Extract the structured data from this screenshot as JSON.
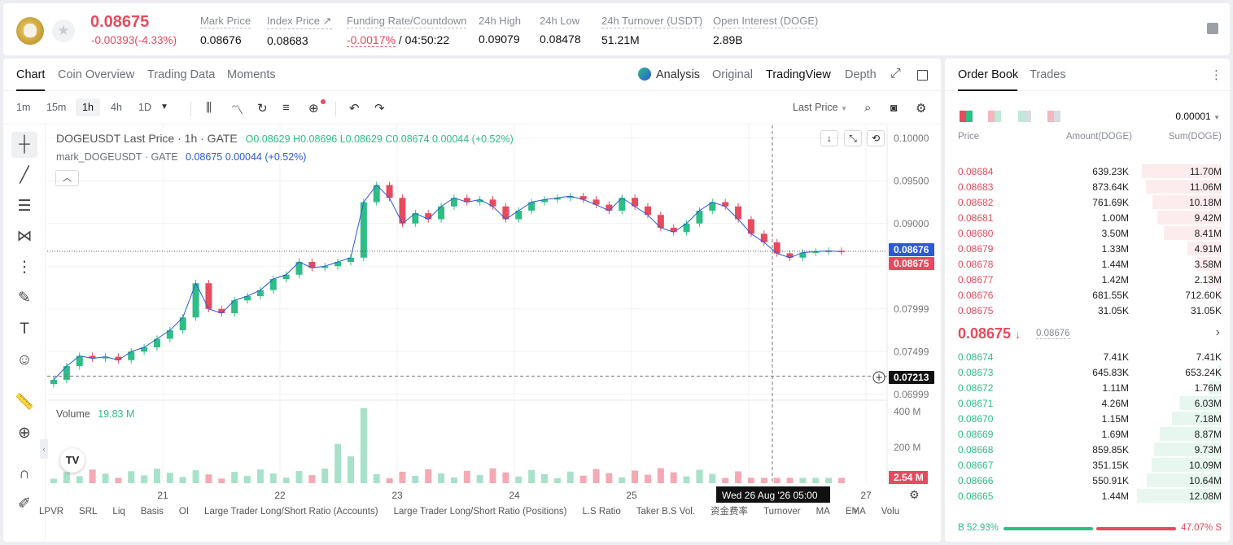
{
  "header": {
    "last_price": "0.08675",
    "change": "-0.00393(-4.33%)",
    "stats": [
      {
        "label": "Mark Price",
        "value": "0.08676"
      },
      {
        "label": "Index Price ↗",
        "value": "0.08683"
      },
      {
        "label": "Funding Rate/Countdown",
        "value": "-0.0017%",
        "value2": " / 04:50:22"
      },
      {
        "label": "24h High",
        "value": "0.09079"
      },
      {
        "label": "24h Low",
        "value": "0.08478"
      },
      {
        "label": "24h Turnover (USDT)",
        "value": "51.21M"
      },
      {
        "label": "Open Interest (DOGE)",
        "value": "2.89B"
      }
    ]
  },
  "chart_tabs": {
    "left": [
      "Chart",
      "Coin Overview",
      "Trading Data",
      "Moments"
    ],
    "right": [
      "Analysis",
      "Original",
      "TradingView",
      "Depth"
    ]
  },
  "toolbar": {
    "timeframes": [
      "1m",
      "15m",
      "1h",
      "4h",
      "1D"
    ],
    "selected": "1h",
    "price_type": "Last Price"
  },
  "legend": {
    "symbol": "DOGEUSDT Last Price · 1h · GATE",
    "ohlc": "O0.08629  H0.08696  L0.08629  C0.08674  0.00044 (+0.52%)",
    "mark_label": "mark_DOGEUSDT · GATE",
    "mark_values": "0.08675  0.00044  (+0.52%)",
    "volume_label": "Volume",
    "volume_value": "19.83 M"
  },
  "price_axis": {
    "ticks": [
      "0.10000",
      "0.09500",
      "0.09000",
      "0.08499",
      "0.07999",
      "0.07499",
      "0.06999"
    ],
    "mark_tag": "0.08676",
    "last_tag": "0.08675",
    "cross_tag": "0.07213"
  },
  "volume_axis": {
    "ticks": [
      "400 M",
      "200 M"
    ],
    "current_tag": "2.54 M"
  },
  "time_axis": {
    "ticks": [
      "21",
      "22",
      "23",
      "24",
      "25",
      "27"
    ],
    "crosshair": "Wed 26 Aug '26   05:00"
  },
  "bottom_nav": [
    "LPVR",
    "SRL",
    "Liq",
    "Basis",
    "OI",
    "Large Trader Long/Short Ratio (Accounts)",
    "Large Trader Long/Short Ratio (Positions)",
    "L.S Ratio",
    "Taker B.S Vol.",
    "资金费率",
    "Turnover",
    "MA",
    "EMA",
    "Volu"
  ],
  "chart_data": {
    "type": "candlestick",
    "ylim": [
      0.0695,
      0.1015
    ],
    "close_approx_by_hour": [
      0.0717,
      0.0733,
      0.0745,
      0.0742,
      0.0744,
      0.074,
      0.075,
      0.0755,
      0.0765,
      0.0775,
      0.079,
      0.083,
      0.08,
      0.0795,
      0.081,
      0.0815,
      0.0822,
      0.0835,
      0.084,
      0.0855,
      0.0848,
      0.085,
      0.0855,
      0.086,
      0.0925,
      0.0945,
      0.093,
      0.09,
      0.0912,
      0.0905,
      0.092,
      0.093,
      0.0925,
      0.0928,
      0.092,
      0.0905,
      0.0915,
      0.0925,
      0.0928,
      0.093,
      0.0932,
      0.0928,
      0.0922,
      0.0915,
      0.093,
      0.092,
      0.091,
      0.0895,
      0.089,
      0.09,
      0.0915,
      0.0925,
      0.092,
      0.0905,
      0.0888,
      0.0878,
      0.0865,
      0.086,
      0.0866,
      0.0867,
      0.0868,
      0.0867
    ]
  },
  "order_book": {
    "tabs": [
      "Order Book",
      "Trades"
    ],
    "precision": "0.00001",
    "headers": [
      "Price",
      "Amount(DOGE)",
      "Sum(DOGE)"
    ],
    "asks": [
      {
        "price": "0.08684",
        "amount": "639.23K",
        "sum": "11.70M",
        "depth": 0.94
      },
      {
        "price": "0.08683",
        "amount": "873.64K",
        "sum": "11.06M",
        "depth": 0.89
      },
      {
        "price": "0.08682",
        "amount": "761.69K",
        "sum": "10.18M",
        "depth": 0.82
      },
      {
        "price": "0.08681",
        "amount": "1.00M",
        "sum": "9.42M",
        "depth": 0.76
      },
      {
        "price": "0.08680",
        "amount": "3.50M",
        "sum": "8.41M",
        "depth": 0.68
      },
      {
        "price": "0.08679",
        "amount": "1.33M",
        "sum": "4.91M",
        "depth": 0.4
      },
      {
        "price": "0.08678",
        "amount": "1.44M",
        "sum": "3.58M",
        "depth": 0.29
      },
      {
        "price": "0.08677",
        "amount": "1.42M",
        "sum": "2.13M",
        "depth": 0.17
      },
      {
        "price": "0.08676",
        "amount": "681.55K",
        "sum": "712.60K",
        "depth": 0.06
      },
      {
        "price": "0.08675",
        "amount": "31.05K",
        "sum": "31.05K",
        "depth": 0.01
      }
    ],
    "mid_price": "0.08675",
    "mid_mark": "0.08676",
    "bids": [
      {
        "price": "0.08674",
        "amount": "7.41K",
        "sum": "7.41K",
        "depth": 0.01
      },
      {
        "price": "0.08673",
        "amount": "645.83K",
        "sum": "653.24K",
        "depth": 0.05
      },
      {
        "price": "0.08672",
        "amount": "1.11M",
        "sum": "1.76M",
        "depth": 0.15
      },
      {
        "price": "0.08671",
        "amount": "4.26M",
        "sum": "6.03M",
        "depth": 0.5
      },
      {
        "price": "0.08670",
        "amount": "1.15M",
        "sum": "7.18M",
        "depth": 0.59
      },
      {
        "price": "0.08669",
        "amount": "1.69M",
        "sum": "8.87M",
        "depth": 0.73
      },
      {
        "price": "0.08668",
        "amount": "859.85K",
        "sum": "9.73M",
        "depth": 0.8
      },
      {
        "price": "0.08667",
        "amount": "351.15K",
        "sum": "10.09M",
        "depth": 0.83
      },
      {
        "price": "0.08666",
        "amount": "550.91K",
        "sum": "10.64M",
        "depth": 0.88
      },
      {
        "price": "0.08665",
        "amount": "1.44M",
        "sum": "12.08M",
        "depth": 1.0
      }
    ],
    "buy_ratio": "52.93%",
    "sell_ratio": "47.07%",
    "buy_label": "B",
    "sell_label": "S"
  },
  "colors": {
    "up": "#2ebd85",
    "down": "#e64b5d",
    "accent": "#2a5ad8"
  }
}
